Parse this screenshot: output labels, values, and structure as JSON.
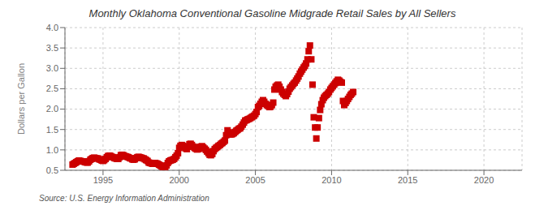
{
  "chart_data": {
    "type": "scatter",
    "title": "Monthly Oklahoma Conventional Gasoline Midgrade Retail Sales by All Sellers",
    "y_label": "Dollars per Gallon",
    "annotations": [
      "Source: U.S. Energy Information Administration"
    ],
    "color": "#cc0000",
    "marker": "square",
    "grid": true,
    "xlim": [
      1992.5,
      2022.5
    ],
    "ylim": [
      0.5,
      4.0
    ],
    "xticks": [
      1995,
      2000,
      2005,
      2010,
      2015,
      2020
    ],
    "yticks": [
      0.5,
      {
        "value": 1.0,
        "label": "1.0"
      },
      1.5,
      {
        "value": 2.0,
        "label": "2.0"
      },
      2.5,
      {
        "value": 3.0,
        "label": "3.0"
      },
      3.5,
      {
        "value": 4.0,
        "label": "4.0"
      }
    ],
    "x": [
      1993.0,
      1993.08,
      1993.17,
      1993.25,
      1993.33,
      1993.42,
      1993.5,
      1993.58,
      1993.67,
      1993.75,
      1993.83,
      1993.92,
      1994.0,
      1994.08,
      1994.17,
      1994.25,
      1994.33,
      1994.42,
      1994.5,
      1994.58,
      1994.67,
      1994.75,
      1994.83,
      1994.92,
      1995.0,
      1995.08,
      1995.17,
      1995.25,
      1995.33,
      1995.42,
      1995.5,
      1995.58,
      1995.67,
      1995.75,
      1995.83,
      1995.92,
      1996.0,
      1996.08,
      1996.17,
      1996.25,
      1996.33,
      1996.42,
      1996.5,
      1996.58,
      1996.67,
      1996.75,
      1996.83,
      1996.92,
      1997.0,
      1997.08,
      1997.17,
      1997.25,
      1997.33,
      1997.42,
      1997.5,
      1997.58,
      1997.67,
      1997.75,
      1997.83,
      1997.92,
      1998.0,
      1998.08,
      1998.17,
      1998.25,
      1998.33,
      1998.42,
      1998.5,
      1998.58,
      1998.67,
      1998.75,
      1998.83,
      1998.92,
      1999.0,
      1999.08,
      1999.17,
      1999.25,
      1999.33,
      1999.42,
      1999.5,
      1999.58,
      1999.67,
      1999.75,
      1999.83,
      1999.92,
      2000.0,
      2000.08,
      2000.17,
      2000.25,
      2000.33,
      2000.42,
      2000.5,
      2000.58,
      2000.67,
      2000.75,
      2000.83,
      2000.92,
      2001.0,
      2001.08,
      2001.17,
      2001.25,
      2001.33,
      2001.42,
      2001.5,
      2001.58,
      2001.67,
      2001.75,
      2001.83,
      2001.92,
      2002.0,
      2002.08,
      2002.17,
      2002.25,
      2002.33,
      2002.42,
      2002.5,
      2002.58,
      2002.67,
      2002.75,
      2002.83,
      2002.92,
      2003.0,
      2003.08,
      2003.17,
      2003.25,
      2003.33,
      2003.42,
      2003.5,
      2003.58,
      2003.67,
      2003.75,
      2003.83,
      2003.92,
      2004.0,
      2004.08,
      2004.17,
      2004.25,
      2004.33,
      2004.42,
      2004.5,
      2004.58,
      2004.67,
      2004.75,
      2004.83,
      2004.92,
      2005.0,
      2005.08,
      2005.17,
      2005.25,
      2005.33,
      2005.42,
      2005.5,
      2005.58,
      2005.67,
      2005.75,
      2005.83,
      2005.92,
      2006.0,
      2006.08,
      2006.17,
      2006.25,
      2006.33,
      2006.42,
      2006.5,
      2006.58,
      2006.67,
      2006.75,
      2006.83,
      2006.92,
      2007.0,
      2007.08,
      2007.17,
      2007.25,
      2007.33,
      2007.42,
      2007.5,
      2007.58,
      2007.67,
      2007.75,
      2007.83,
      2007.92,
      2008.0,
      2008.08,
      2008.17,
      2008.25,
      2008.33,
      2008.42,
      2008.5,
      2008.58,
      2008.67,
      2008.75,
      2008.83,
      2008.92,
      2009.0,
      2009.08,
      2009.17,
      2009.25,
      2009.33,
      2009.42,
      2009.5,
      2009.58,
      2009.67,
      2009.75,
      2009.83,
      2009.92,
      2010.0,
      2010.08,
      2010.17,
      2010.25,
      2010.33,
      2010.42,
      2010.5,
      2010.58,
      2010.67,
      2010.75,
      2010.83,
      2010.92,
      2011.0,
      2011.08,
      2011.17,
      2011.25,
      2011.33,
      2011.42
    ],
    "values": [
      0.64,
      0.66,
      0.68,
      0.7,
      0.72,
      0.74,
      0.73,
      0.72,
      0.72,
      0.71,
      0.7,
      0.69,
      0.69,
      0.72,
      0.76,
      0.78,
      0.8,
      0.81,
      0.8,
      0.79,
      0.79,
      0.77,
      0.76,
      0.74,
      0.73,
      0.75,
      0.78,
      0.82,
      0.85,
      0.86,
      0.85,
      0.83,
      0.82,
      0.8,
      0.79,
      0.78,
      0.78,
      0.82,
      0.87,
      0.88,
      0.87,
      0.85,
      0.84,
      0.83,
      0.82,
      0.8,
      0.79,
      0.77,
      0.76,
      0.77,
      0.8,
      0.82,
      0.83,
      0.82,
      0.81,
      0.8,
      0.79,
      0.77,
      0.75,
      0.73,
      0.69,
      0.68,
      0.67,
      0.66,
      0.67,
      0.68,
      0.67,
      0.66,
      0.64,
      0.62,
      0.6,
      0.57,
      0.55,
      0.57,
      0.62,
      0.68,
      0.72,
      0.74,
      0.75,
      0.76,
      0.78,
      0.82,
      0.86,
      0.92,
      1.05,
      1.1,
      1.12,
      1.1,
      1.07,
      1.04,
      1.02,
      1.08,
      1.14,
      1.15,
      1.12,
      1.08,
      1.05,
      1.03,
      1.01,
      1.02,
      1.07,
      1.08,
      1.09,
      1.06,
      1.03,
      1.0,
      0.96,
      0.92,
      0.88,
      0.87,
      0.9,
      0.97,
      1.02,
      1.05,
      1.07,
      1.1,
      1.12,
      1.15,
      1.17,
      1.2,
      1.23,
      1.36,
      1.48,
      1.43,
      1.38,
      1.38,
      1.39,
      1.41,
      1.44,
      1.47,
      1.49,
      1.52,
      1.53,
      1.57,
      1.62,
      1.67,
      1.72,
      1.73,
      1.75,
      1.76,
      1.78,
      1.8,
      1.82,
      1.84,
      1.88,
      1.93,
      2.05,
      2.08,
      2.13,
      2.18,
      2.22,
      2.18,
      2.13,
      2.1,
      2.08,
      2.05,
      2.06,
      2.1,
      2.16,
      2.48,
      2.55,
      2.58,
      2.6,
      2.55,
      2.48,
      2.42,
      2.38,
      2.35,
      2.32,
      2.37,
      2.43,
      2.5,
      2.54,
      2.58,
      2.62,
      2.65,
      2.7,
      2.75,
      2.8,
      2.87,
      2.92,
      2.97,
      3.02,
      3.06,
      3.12,
      3.22,
      3.42,
      3.56,
      3.22,
      2.6,
      1.8,
      1.55,
      1.28,
      1.55,
      1.78,
      1.98,
      2.12,
      2.22,
      2.28,
      2.32,
      2.35,
      2.38,
      2.42,
      2.48,
      2.52,
      2.56,
      2.6,
      2.64,
      2.68,
      2.72,
      2.7,
      2.67,
      2.65,
      2.2,
      2.1,
      2.15,
      2.2,
      2.25,
      2.3,
      2.35,
      2.38,
      2.42
    ]
  }
}
